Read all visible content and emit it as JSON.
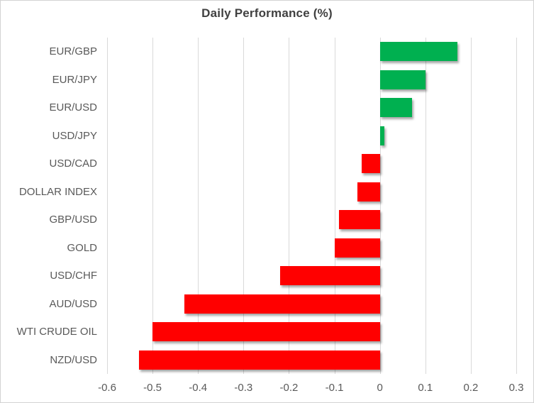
{
  "colors": {
    "positive": "#00B050",
    "negative": "#FF0000",
    "gridline": "#D9D9D9",
    "axis_text": "#595959",
    "title_text": "#404040",
    "background": "#FFFFFF",
    "border": "#D3D3D3"
  },
  "chart_data": {
    "type": "bar",
    "orientation": "horizontal",
    "title": "Daily Performance (%)",
    "categories": [
      "EUR/GBP",
      "EUR/JPY",
      "EUR/USD",
      "USD/JPY",
      "USD/CAD",
      "DOLLAR INDEX",
      "GBP/USD",
      "GOLD",
      "USD/CHF",
      "AUD/USD",
      "WTI CRUDE OIL",
      "NZD/USD"
    ],
    "values": [
      0.17,
      0.1,
      0.07,
      0.01,
      -0.04,
      -0.05,
      -0.09,
      -0.1,
      -0.22,
      -0.43,
      -0.5,
      -0.53
    ],
    "xlabel": "",
    "ylabel": "",
    "xlim": [
      -0.6,
      0.3
    ],
    "x_ticks": [
      -0.6,
      -0.5,
      -0.4,
      -0.3,
      -0.2,
      -0.1,
      0,
      0.1,
      0.2,
      0.3
    ],
    "x_tick_labels": [
      "-0.6",
      "-0.5",
      "-0.4",
      "-0.3",
      "-0.2",
      "-0.1",
      "0",
      "0.1",
      "0.2",
      "0.3"
    ],
    "grid": "vertical-major",
    "legend": "none"
  }
}
